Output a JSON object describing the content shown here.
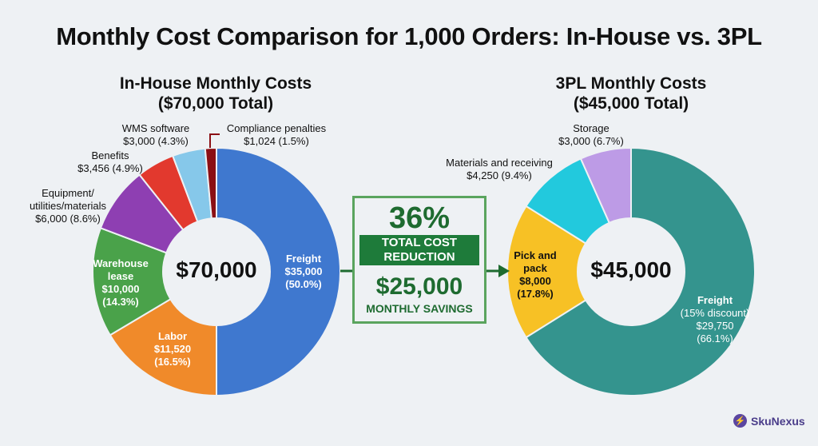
{
  "title": "Monthly Cost Comparison for 1,000 Orders: In-House vs. 3PL",
  "left": {
    "subtitle_line1": "In-House Monthly Costs",
    "subtitle_line2": "($70,000 Total)",
    "center": "$70,000",
    "labels": {
      "freight": [
        "Freight",
        "$35,000",
        "(50.0%)"
      ],
      "labor": [
        "Labor",
        "$11,520",
        "(16.5%)"
      ],
      "lease": [
        "Warehouse",
        "lease",
        "$10,000",
        "(14.3%)"
      ],
      "equipment": [
        "Equipment/",
        "utilities/materials",
        "$6,000 (8.6%)"
      ],
      "benefits": [
        "Benefits",
        "$3,456 (4.9%)"
      ],
      "wms": [
        "WMS software",
        "$3,000 (4.3%)"
      ],
      "compliance": [
        "Compliance penalties",
        "$1,024 (1.5%)"
      ]
    }
  },
  "right": {
    "subtitle_line1": "3PL Monthly Costs",
    "subtitle_line2": "($45,000 Total)",
    "center": "$45,000",
    "labels": {
      "freight": [
        "Freight",
        "(15% discount)",
        "$29,750",
        "(66.1%)"
      ],
      "pick": [
        "Pick and",
        "pack",
        "$8,000",
        "(17.8%)"
      ],
      "materials": [
        "Materials and receiving",
        "$4,250 (9.4%)"
      ],
      "storage": [
        "Storage",
        "$3,000 (6.7%)"
      ]
    }
  },
  "summary": {
    "percent": "36%",
    "band_line1": "TOTAL COST",
    "band_line2": "REDUCTION",
    "savings": "$25,000",
    "savings_label": "MONTHLY SAVINGS"
  },
  "brand": {
    "name": "SkuNexus",
    "icon": "lightning-logo-icon"
  },
  "chart_data": [
    {
      "type": "pie",
      "title": "In-House Monthly Costs ($70,000 Total)",
      "center_label": "$70,000",
      "categories": [
        "Freight",
        "Labor",
        "Warehouse lease",
        "Equipment/utilities/materials",
        "Benefits",
        "WMS software",
        "Compliance penalties"
      ],
      "values": [
        35000,
        11520,
        10000,
        6000,
        3456,
        3000,
        1024
      ],
      "percents": [
        50.0,
        16.5,
        14.3,
        8.6,
        4.9,
        4.3,
        1.5
      ],
      "colors": [
        "#3f78cf",
        "#f08a2a",
        "#4aa24a",
        "#8e3fb2",
        "#e2392e",
        "#86c8ea",
        "#8b0f14"
      ]
    },
    {
      "type": "pie",
      "title": "3PL Monthly Costs ($45,000 Total)",
      "center_label": "$45,000",
      "categories": [
        "Freight (15% discount)",
        "Pick and pack",
        "Materials and receiving",
        "Storage"
      ],
      "values": [
        29750,
        8000,
        4250,
        3000
      ],
      "percents": [
        66.1,
        17.8,
        9.4,
        6.7
      ],
      "colors": [
        "#34948e",
        "#f7c125",
        "#22c9dd",
        "#bd9be6"
      ]
    }
  ]
}
